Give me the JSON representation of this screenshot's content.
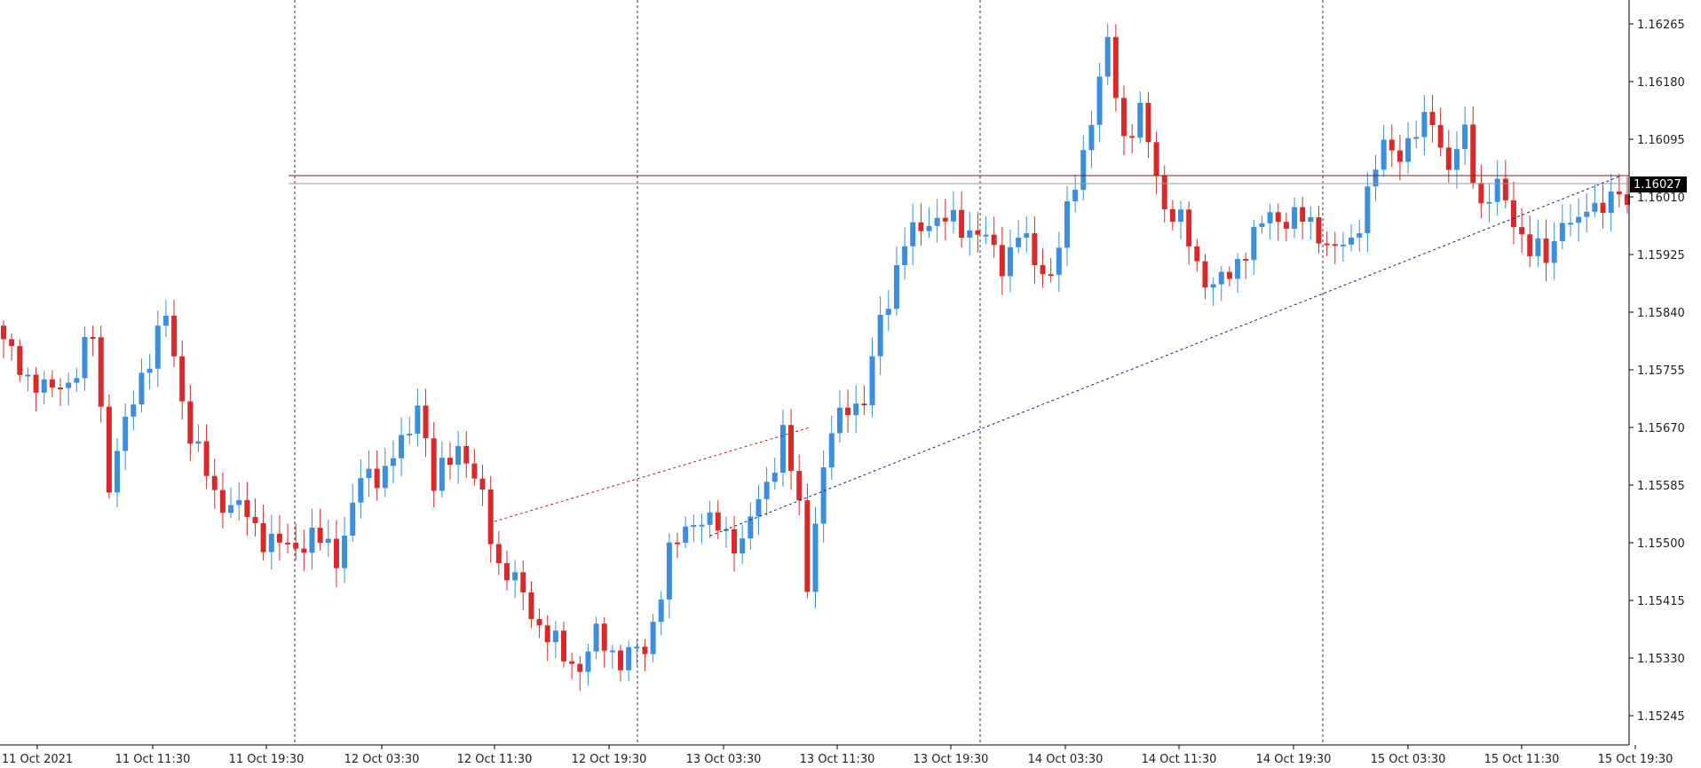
{
  "chart_data": {
    "type": "candlestick",
    "price_ylim": [
      1.152,
      1.163
    ],
    "y_ticks": [
      "1.16265",
      "1.16180",
      "1.16095",
      "1.16010",
      "1.15925",
      "1.15840",
      "1.15755",
      "1.15670",
      "1.15585",
      "1.15500",
      "1.15415",
      "1.15330",
      "1.15245"
    ],
    "x_ticks": [
      "11 Oct 2021",
      "11 Oct 11:30",
      "11 Oct 19:30",
      "12 Oct 03:30",
      "12 Oct 11:30",
      "12 Oct 19:30",
      "13 Oct 03:30",
      "13 Oct 11:30",
      "13 Oct 19:30",
      "14 Oct 03:30",
      "14 Oct 11:30",
      "14 Oct 19:30",
      "15 Oct 03:30",
      "15 Oct 11:30",
      "15 Oct 19:30"
    ],
    "day_separators_after": [
      "11 Oct 2021",
      "12 Oct 2021",
      "13 Oct 2021",
      "14 Oct 2021"
    ],
    "current_price": "1.16027",
    "upper_price_line": 1.16037,
    "colors": {
      "up": "#3a8fdf",
      "down": "#d92a2a",
      "grid": "#333333",
      "tag_bg": "#000000"
    },
    "anchors": [
      [
        0,
        1.1579
      ],
      [
        5,
        1.1572
      ],
      [
        9,
        1.1575
      ],
      [
        11,
        1.1581
      ],
      [
        13,
        1.1559
      ],
      [
        17,
        1.1575
      ],
      [
        20,
        1.1583
      ],
      [
        23,
        1.1566
      ],
      [
        26,
        1.1557
      ],
      [
        29,
        1.1555
      ],
      [
        32,
        1.1551
      ],
      [
        35,
        1.1549
      ],
      [
        38,
        1.1551
      ],
      [
        41,
        1.1548
      ],
      [
        44,
        1.1559
      ],
      [
        47,
        1.1561
      ],
      [
        50,
        1.1566
      ],
      [
        51,
        1.1572
      ],
      [
        53,
        1.1558
      ],
      [
        56,
        1.1565
      ],
      [
        59,
        1.1556
      ],
      [
        61,
        1.1547
      ],
      [
        63,
        1.1544
      ],
      [
        66,
        1.1538
      ],
      [
        69,
        1.1533
      ],
      [
        71,
        1.1532
      ],
      [
        73,
        1.1536
      ],
      [
        76,
        1.1533
      ],
      [
        79,
        1.1534
      ],
      [
        82,
        1.1548
      ],
      [
        85,
        1.1554
      ],
      [
        88,
        1.1552
      ],
      [
        91,
        1.155
      ],
      [
        94,
        1.1559
      ],
      [
        96,
        1.1566
      ],
      [
        98,
        1.1555
      ],
      [
        99,
        1.1544
      ],
      [
        100,
        1.1554
      ],
      [
        102,
        1.1566
      ],
      [
        104,
        1.1571
      ],
      [
        106,
        1.157
      ],
      [
        108,
        1.1583
      ],
      [
        111,
        1.1594
      ],
      [
        114,
        1.1598
      ],
      [
        117,
        1.1597
      ],
      [
        120,
        1.1596
      ],
      [
        123,
        1.1591
      ],
      [
        125,
        1.1596
      ],
      [
        127,
        1.1591
      ],
      [
        129,
        1.159
      ],
      [
        131,
        1.1598
      ],
      [
        134,
        1.1613
      ],
      [
        136,
        1.1623
      ],
      [
        138,
        1.161
      ],
      [
        140,
        1.1613
      ],
      [
        143,
        1.16
      ],
      [
        145,
        1.1597
      ],
      [
        147,
        1.1591
      ],
      [
        149,
        1.1588
      ],
      [
        151,
        1.1589
      ],
      [
        153,
        1.1594
      ],
      [
        156,
        1.1598
      ],
      [
        159,
        1.1598
      ],
      [
        162,
        1.1596
      ],
      [
        164,
        1.1593
      ],
      [
        166,
        1.1594
      ],
      [
        168,
        1.1602
      ],
      [
        170,
        1.1608
      ],
      [
        172,
        1.1608
      ],
      [
        174,
        1.161
      ],
      [
        176,
        1.1613
      ],
      [
        178,
        1.1605
      ],
      [
        180,
        1.161
      ],
      [
        182,
        1.16
      ],
      [
        184,
        1.1602
      ],
      [
        186,
        1.1598
      ],
      [
        188,
        1.1593
      ],
      [
        190,
        1.1592
      ],
      [
        192,
        1.1598
      ],
      [
        194,
        1.1596
      ],
      [
        195,
        1.16
      ]
    ],
    "trend_line": {
      "from": [
        87,
        1.1551
      ],
      "to": [
        199,
        1.1604
      ]
    }
  }
}
